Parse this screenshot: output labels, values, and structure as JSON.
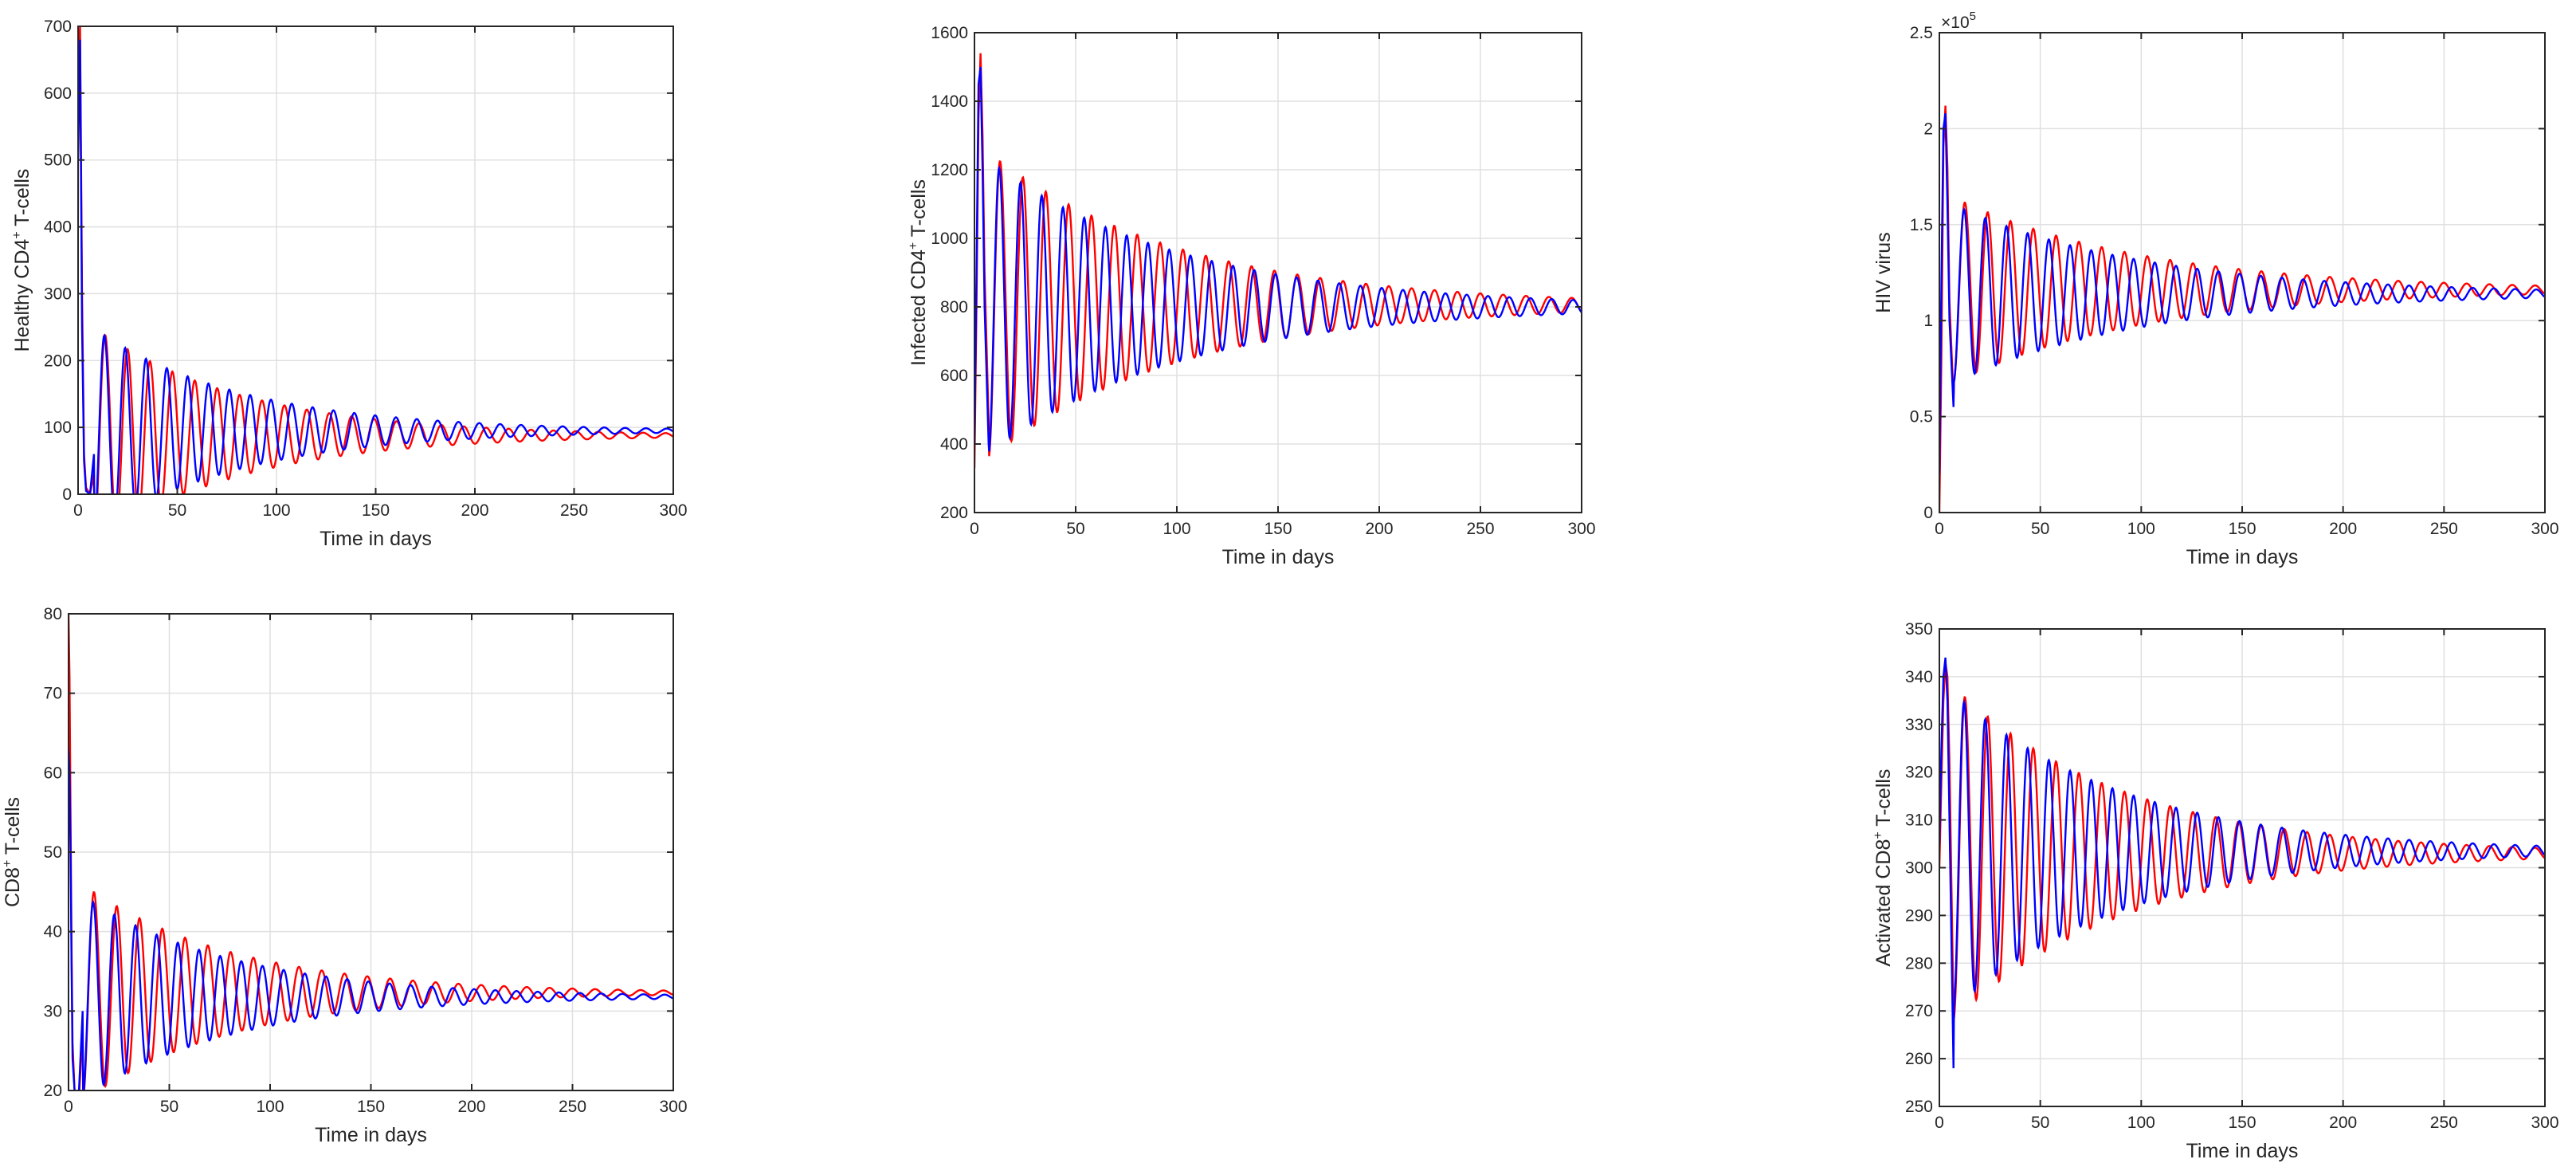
{
  "figure": {
    "curve_colors": {
      "first": "#ff0000",
      "second": "#0000ff"
    }
  },
  "chart_data": [
    {
      "type": "line",
      "id": "healthy",
      "ylabel": {
        "base": "Healthy CD4",
        "sup": "+",
        "rest": " T-cells"
      },
      "xlabel": "Time in days",
      "xlim": [
        0,
        300
      ],
      "ylim": [
        0,
        700
      ],
      "xticks": [
        0,
        50,
        100,
        150,
        200,
        250,
        300
      ],
      "yticks": [
        0,
        100,
        200,
        300,
        400,
        500,
        600,
        700
      ],
      "exponent_label": "",
      "grid": true,
      "series": [
        {
          "color": "#ff0000",
          "period": 11.3,
          "eq": 88,
          "amp0": 180,
          "decay": 75,
          "x": [
            0,
            1,
            2,
            3,
            4,
            6,
            8
          ],
          "y": [
            640,
            700,
            300,
            60,
            10,
            0,
            30
          ]
        },
        {
          "color": "#0000ff",
          "period": 10.5,
          "eq": 95,
          "amp0": 170,
          "decay": 75,
          "x": [
            0,
            1,
            2,
            3,
            4,
            6,
            8
          ],
          "y": [
            500,
            680,
            250,
            50,
            5,
            0,
            60
          ]
        }
      ]
    },
    {
      "type": "line",
      "id": "infected",
      "ylabel": {
        "base": "Infected CD4",
        "sup": "+",
        "rest": " T-cells"
      },
      "xlabel": "Time in days",
      "xlim": [
        0,
        300
      ],
      "ylim": [
        200,
        1600
      ],
      "xticks": [
        0,
        50,
        100,
        150,
        200,
        250,
        300
      ],
      "yticks": [
        200,
        400,
        600,
        800,
        1000,
        1200,
        1400,
        1600
      ],
      "exponent_label": "",
      "grid": true,
      "series": [
        {
          "color": "#ff0000",
          "period": 11.3,
          "eq": 805,
          "amp0": 480,
          "decay": 95,
          "x": [
            0,
            1,
            2,
            3,
            4,
            5,
            7
          ],
          "y": [
            330,
            800,
            1350,
            1540,
            1300,
            900,
            470
          ]
        },
        {
          "color": "#0000ff",
          "period": 10.5,
          "eq": 800,
          "amp0": 460,
          "decay": 95,
          "x": [
            0,
            1,
            2,
            3,
            4,
            5,
            7
          ],
          "y": [
            400,
            900,
            1450,
            1500,
            1200,
            800,
            400
          ]
        }
      ]
    },
    {
      "type": "line",
      "id": "virus",
      "ylabel": {
        "base": "HIV virus",
        "sup": "",
        "rest": ""
      },
      "xlabel": "Time in days",
      "xlim": [
        0,
        300
      ],
      "ylim": [
        0,
        2.5
      ],
      "xticks": [
        0,
        50,
        100,
        150,
        200,
        250,
        300
      ],
      "yticks": [
        0,
        0.5,
        1,
        1.5,
        2,
        2.5
      ],
      "exponent_label": {
        "base": "×10",
        "sup": "5"
      },
      "grid": true,
      "series": [
        {
          "color": "#ff0000",
          "period": 11.3,
          "eq": 1.16,
          "amp0": 0.52,
          "decay": 95,
          "x": [
            0,
            1,
            2,
            3,
            4,
            5,
            7
          ],
          "y": [
            0,
            0.8,
            1.9,
            2.12,
            1.8,
            1.1,
            0.6
          ]
        },
        {
          "color": "#0000ff",
          "period": 10.5,
          "eq": 1.14,
          "amp0": 0.5,
          "decay": 95,
          "x": [
            0,
            1,
            2,
            3,
            4,
            5,
            7
          ],
          "y": [
            0.2,
            1.2,
            2.0,
            2.08,
            1.6,
            1.0,
            0.55
          ]
        }
      ]
    },
    {
      "type": "line",
      "id": "cd8",
      "ylabel": {
        "base": "CD8",
        "sup": "+",
        "rest": " T-cells"
      },
      "xlabel": "Time in days",
      "xlim": [
        0,
        300
      ],
      "ylim": [
        20,
        80
      ],
      "xticks": [
        0,
        50,
        100,
        150,
        200,
        250,
        300
      ],
      "yticks": [
        20,
        30,
        40,
        50,
        60,
        70,
        80
      ],
      "exponent_label": "",
      "grid": true,
      "series": [
        {
          "color": "#ff0000",
          "period": 11.3,
          "eq": 32.3,
          "amp0": 15,
          "decay": 75,
          "x": [
            0,
            0.5,
            1,
            1.5,
            2,
            3,
            5,
            7
          ],
          "y": [
            80,
            72,
            55,
            38,
            26,
            20,
            18,
            28
          ]
        },
        {
          "color": "#0000ff",
          "period": 10.5,
          "eq": 31.8,
          "amp0": 14,
          "decay": 75,
          "x": [
            0,
            0.5,
            1,
            1.5,
            2,
            3,
            5,
            7
          ],
          "y": [
            63,
            60,
            50,
            36,
            24,
            20,
            19,
            30
          ]
        }
      ]
    },
    {
      "type": "line",
      "id": "activated",
      "ylabel": {
        "base": "Activated CD8",
        "sup": "+",
        "rest": " T-cells"
      },
      "xlabel": "Time in days",
      "xlim": [
        0,
        300
      ],
      "ylim": [
        250,
        350
      ],
      "xticks": [
        0,
        50,
        100,
        150,
        200,
        250,
        300
      ],
      "yticks": [
        250,
        260,
        270,
        280,
        290,
        300,
        310,
        320,
        330,
        340,
        350
      ],
      "exponent_label": "",
      "grid": true,
      "series": [
        {
          "color": "#ff0000",
          "period": 11.3,
          "eq": 303,
          "amp0": 38,
          "decay": 85,
          "x": [
            0,
            1,
            2,
            3,
            4,
            5,
            7
          ],
          "y": [
            300,
            318,
            335,
            343,
            340,
            322,
            270
          ]
        },
        {
          "color": "#0000ff",
          "period": 10.5,
          "eq": 303.5,
          "amp0": 36,
          "decay": 85,
          "x": [
            0,
            1,
            2,
            3,
            4,
            5,
            7
          ],
          "y": [
            305,
            325,
            340,
            344,
            335,
            310,
            258
          ]
        }
      ]
    }
  ]
}
